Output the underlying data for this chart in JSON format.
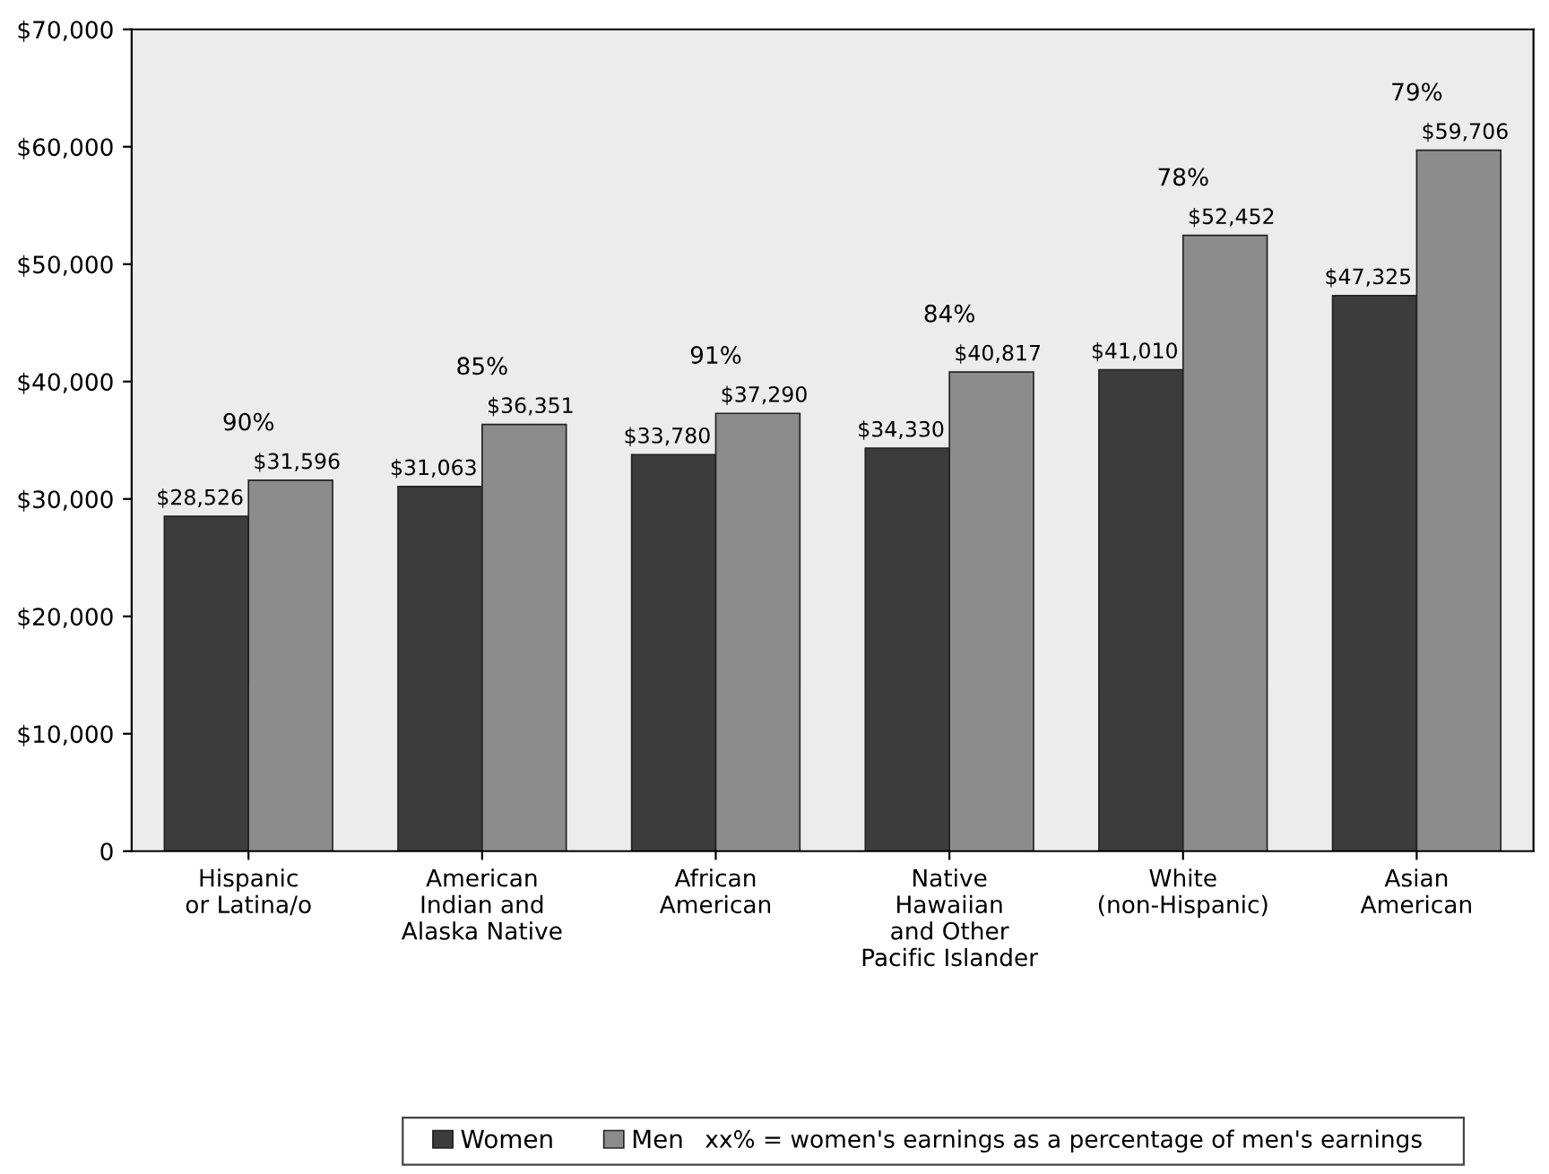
{
  "chart_data": {
    "type": "bar",
    "categories": [
      "Hispanic\nor Latina/o",
      "American\nIndian and\nAlaska Native",
      "African\nAmerican",
      "Native\nHawaiian\nand Other\nPacific Islander",
      "White\n(non-Hispanic)",
      "Asian\nAmerican"
    ],
    "series": [
      {
        "name": "Women",
        "color": "#3c3c3c",
        "values": [
          28526,
          31063,
          33780,
          34330,
          41010,
          47325
        ],
        "value_labels": [
          "$28,526",
          "$31,063",
          "$33,780",
          "$34,330",
          "$41,010",
          "$47,325"
        ]
      },
      {
        "name": "Men",
        "color": "#8c8c8c",
        "values": [
          31596,
          36351,
          37290,
          40817,
          52452,
          59706
        ],
        "value_labels": [
          "$31,596",
          "$36,351",
          "$37,290",
          "$40,817",
          "$52,452",
          "$59,706"
        ]
      }
    ],
    "ylim": [
      0,
      70000
    ],
    "yticks": [
      {
        "value": 0,
        "label": "0"
      },
      {
        "value": 10000,
        "label": "$10,000"
      },
      {
        "value": 20000,
        "label": "$20,000"
      },
      {
        "value": 30000,
        "label": "$30,000"
      },
      {
        "value": 40000,
        "label": "$40,000"
      },
      {
        "value": 50000,
        "label": "$50,000"
      },
      {
        "value": 60000,
        "label": "$60,000"
      },
      {
        "value": 70000,
        "label": "$70,000"
      }
    ],
    "annotations": [
      "90%",
      "85%",
      "91%",
      "84%",
      "78%",
      "79%",
      "xx% = women's earnings as a percentage of men's earnings"
    ],
    "grid": false,
    "legend": "bottom"
  }
}
